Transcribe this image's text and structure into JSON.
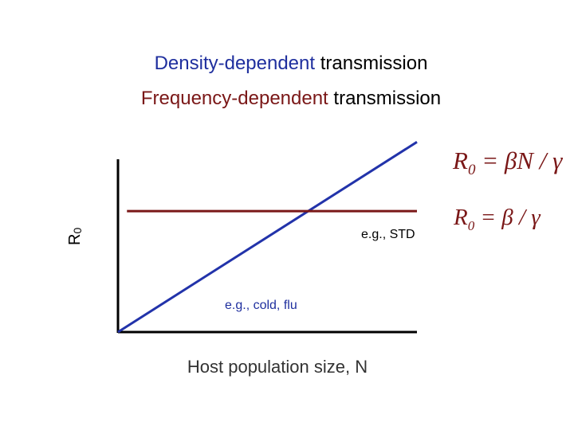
{
  "titles": {
    "density_keyword": "Density-dependent",
    "density_rest": " transmission",
    "frequency_keyword": "Frequency-dependent",
    "frequency_rest": " transmission"
  },
  "colors": {
    "density": "#2233aa",
    "frequency": "#7a1717",
    "axis": "#000000",
    "text": "#000000",
    "annotation_density": "#1f2f9e"
  },
  "chart_data": {
    "type": "line",
    "xlabel": "Host population size, N",
    "ylabel": "R",
    "ylabel_subscript": "0",
    "xlim": [
      0,
      1
    ],
    "ylim": [
      0,
      1
    ],
    "series": [
      {
        "name": "R0 = βN / γ",
        "formula": {
          "lhs": "R",
          "sub": "0",
          "rhs": " = βN / γ"
        },
        "annotation": "e.g., cold, flu",
        "points": [
          [
            0,
            0
          ],
          [
            1,
            1.1
          ]
        ]
      },
      {
        "name": "R0 = β / γ",
        "formula": {
          "lhs": "R",
          "sub": "0",
          "rhs": " = β / γ"
        },
        "annotation": "e.g., STD",
        "points": [
          [
            0.03,
            0.7
          ],
          [
            1,
            0.7
          ]
        ]
      }
    ]
  }
}
